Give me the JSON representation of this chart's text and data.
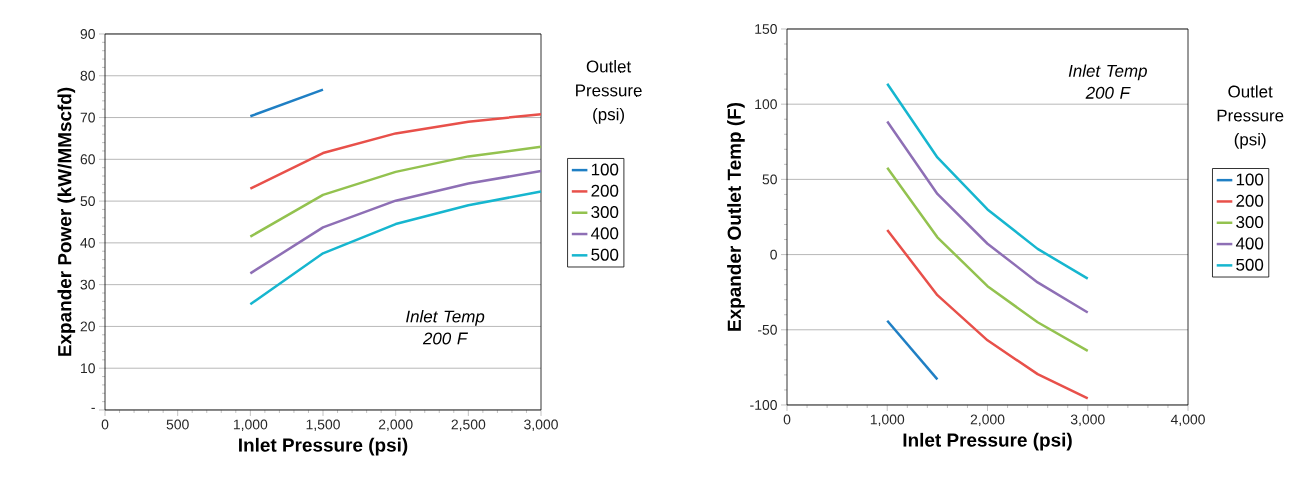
{
  "chart_data": [
    {
      "type": "line",
      "xlabel": "Inlet Pressure (psi)",
      "ylabel": "Expander  Power (kW/MMscfd)",
      "legend_title": "Outlet Pressure (psi)",
      "legend": "right",
      "grid": "y",
      "xlim": [
        0,
        3000
      ],
      "xticks": [
        0,
        500,
        {
          "value": 1000,
          "label": "1,000"
        },
        {
          "value": 1500,
          "label": "1,500"
        },
        {
          "value": 2000,
          "label": "2,000"
        },
        {
          "value": 2500,
          "label": "2,500"
        },
        {
          "value": 3000,
          "label": "3,000"
        }
      ],
      "ylim": [
        0,
        90
      ],
      "yticks": [
        {
          "value": 0,
          "label": "-"
        },
        10,
        20,
        30,
        40,
        50,
        60,
        70,
        80,
        90
      ],
      "annotations": [
        "Inlet Temp 200 F"
      ],
      "series": [
        {
          "name": "100",
          "color": "#1f7fc4",
          "x": [
            1000,
            1500
          ],
          "values": [
            70.3,
            76.7
          ]
        },
        {
          "name": "200",
          "color": "#e8504a",
          "x": [
            1000,
            1500,
            2000,
            2500,
            3000
          ],
          "values": [
            53,
            61.5,
            66.2,
            69,
            70.8
          ]
        },
        {
          "name": "300",
          "color": "#93c24f",
          "x": [
            1000,
            1500,
            2000,
            2500,
            3000
          ],
          "values": [
            41.5,
            51.5,
            57,
            60.7,
            63
          ]
        },
        {
          "name": "400",
          "color": "#8e6fb5",
          "x": [
            1000,
            1500,
            2000,
            2500,
            3000
          ],
          "values": [
            32.7,
            43.7,
            50.1,
            54.2,
            57.2
          ]
        },
        {
          "name": "500",
          "color": "#16b6cf",
          "x": [
            1000,
            1500,
            2000,
            2500,
            3000
          ],
          "values": [
            25.3,
            37.5,
            44.5,
            49,
            52.3
          ]
        }
      ]
    },
    {
      "type": "line",
      "xlabel": "Inlet Pressure (psi)",
      "ylabel": "Expander Outlet Temp (F)",
      "legend_title": "Outlet Pressure (psi)",
      "legend": "right",
      "grid": "y",
      "xlim": [
        0,
        4000
      ],
      "xticks": [
        0,
        {
          "value": 1000,
          "label": "1,000"
        },
        {
          "value": 2000,
          "label": "2,000"
        },
        {
          "value": 3000,
          "label": "3,000"
        },
        {
          "value": 4000,
          "label": "4,000"
        }
      ],
      "ylim": [
        -100,
        150
      ],
      "yticks": [
        -100,
        -50,
        0,
        50,
        100,
        150
      ],
      "annotations": [
        "Inlet Temp 200 F"
      ],
      "series": [
        {
          "name": "100",
          "color": "#1f7fc4",
          "x": [
            1000,
            1500
          ],
          "values": [
            -44,
            -83
          ]
        },
        {
          "name": "200",
          "color": "#e8504a",
          "x": [
            1000,
            1500,
            2000,
            2500,
            3000
          ],
          "values": [
            16.4,
            -27,
            -57,
            -79.5,
            -95.6
          ]
        },
        {
          "name": "300",
          "color": "#93c24f",
          "x": [
            1000,
            1500,
            2000,
            2500,
            3000
          ],
          "values": [
            57.7,
            11.5,
            -21,
            -45,
            -64
          ]
        },
        {
          "name": "400",
          "color": "#8e6fb5",
          "x": [
            1000,
            1500,
            2000,
            2500,
            3000
          ],
          "values": [
            88.5,
            40.3,
            7.2,
            -18.5,
            -38.5
          ]
        },
        {
          "name": "500",
          "color": "#16b6cf",
          "x": [
            1000,
            1500,
            2000,
            2500,
            3000
          ],
          "values": [
            113.6,
            64.6,
            30,
            3.8,
            -16
          ]
        }
      ]
    }
  ]
}
